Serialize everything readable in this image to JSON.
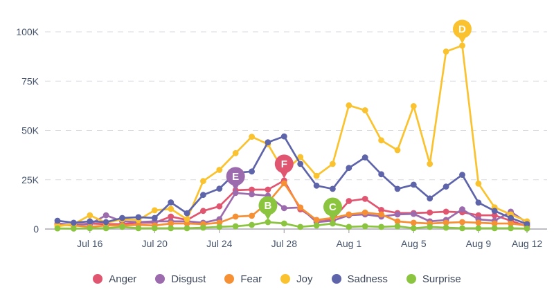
{
  "page": {
    "background": "#ffffff",
    "axis_text_color": "#44536b",
    "gridline_color": "#d8d9e0",
    "axis_line_color": "#a7a7af",
    "legend_text_color": "#3d4759"
  },
  "chart_data": {
    "type": "line",
    "title": "",
    "xlabel": "",
    "ylabel": "",
    "ylim": [
      0,
      100000
    ],
    "grid": "horizontal-dashed",
    "legend_position": "bottom",
    "x": [
      "Jul 14",
      "Jul 15",
      "Jul 16",
      "Jul 17",
      "Jul 18",
      "Jul 19",
      "Jul 20",
      "Jul 21",
      "Jul 22",
      "Jul 23",
      "Jul 24",
      "Jul 25",
      "Jul 26",
      "Jul 27",
      "Jul 28",
      "Jul 29",
      "Jul 30",
      "Jul 31",
      "Aug 1",
      "Aug 2",
      "Aug 3",
      "Aug 4",
      "Aug 5",
      "Aug 6",
      "Aug 7",
      "Aug 8",
      "Aug 9",
      "Aug 10",
      "Aug 11",
      "Aug 12"
    ],
    "x_tick_indices": [
      2,
      6,
      10,
      14,
      18,
      22,
      26,
      29
    ],
    "y_ticks": [
      {
        "value": 0,
        "label": "0"
      },
      {
        "value": 25000,
        "label": "25K"
      },
      {
        "value": 50000,
        "label": "50K"
      },
      {
        "value": 75000,
        "label": "75K"
      },
      {
        "value": 100000,
        "label": "100K"
      }
    ],
    "series": [
      {
        "name": "Anger",
        "color": "#e0556f",
        "values": [
          2500,
          2100,
          2800,
          2500,
          2500,
          3200,
          3200,
          6300,
          4600,
          9200,
          11500,
          19700,
          20000,
          20000,
          24600,
          10000,
          4600,
          5000,
          14200,
          15300,
          9700,
          8100,
          8100,
          8400,
          8800,
          8500,
          7000,
          7000,
          4200,
          1400
        ]
      },
      {
        "name": "Disgust",
        "color": "#9b6bad",
        "values": [
          2800,
          2100,
          2500,
          7000,
          3900,
          3500,
          3900,
          3900,
          3900,
          3200,
          5000,
          18300,
          17600,
          16900,
          10600,
          10900,
          3500,
          4200,
          7000,
          7400,
          6300,
          7400,
          7700,
          3900,
          4600,
          10000,
          4900,
          4200,
          8800,
          3200
        ]
      },
      {
        "name": "Fear",
        "color": "#f69035",
        "values": [
          2100,
          1800,
          1100,
          1800,
          1800,
          2100,
          1800,
          2800,
          2800,
          2500,
          3200,
          6300,
          6700,
          13400,
          23200,
          10900,
          4600,
          5600,
          7400,
          8400,
          7400,
          3900,
          3200,
          2800,
          3200,
          3500,
          3200,
          2800,
          2800,
          1800
        ]
      },
      {
        "name": "Joy",
        "color": "#f9c22e",
        "values": [
          1400,
          2500,
          7000,
          3200,
          4900,
          4600,
          9500,
          10200,
          4900,
          24300,
          30000,
          38500,
          46800,
          43000,
          29000,
          36500,
          27000,
          33000,
          62700,
          60200,
          45000,
          40000,
          62300,
          33000,
          90000,
          93000,
          23000,
          11000,
          7400,
          3900
        ]
      },
      {
        "name": "Sadness",
        "color": "#5e64a9",
        "values": [
          4200,
          3200,
          3900,
          3500,
          5600,
          6000,
          5600,
          13500,
          8000,
          17300,
          20500,
          28500,
          29200,
          44000,
          47000,
          33000,
          22000,
          20400,
          31000,
          36300,
          27800,
          20400,
          22500,
          15500,
          21500,
          27500,
          13400,
          9200,
          5600,
          2500
        ]
      },
      {
        "name": "Surprise",
        "color": "#8bc540",
        "values": [
          300,
          200,
          400,
          400,
          1100,
          400,
          400,
          400,
          400,
          700,
          1100,
          1400,
          2100,
          3500,
          2800,
          1100,
          1800,
          2800,
          1100,
          1400,
          1100,
          1400,
          400,
          1100,
          700,
          400,
          400,
          400,
          400,
          200
        ]
      }
    ],
    "annotations": [
      {
        "letter": "B",
        "series": "Surprise",
        "x": "Jul 27"
      },
      {
        "letter": "C",
        "series": "Surprise",
        "x": "Jul 31"
      },
      {
        "letter": "D",
        "series": "Joy",
        "x": "Aug 8"
      },
      {
        "letter": "E",
        "series": "Disgust",
        "x": "Jul 25"
      },
      {
        "letter": "F",
        "series": "Anger",
        "x": "Jul 28"
      }
    ]
  }
}
